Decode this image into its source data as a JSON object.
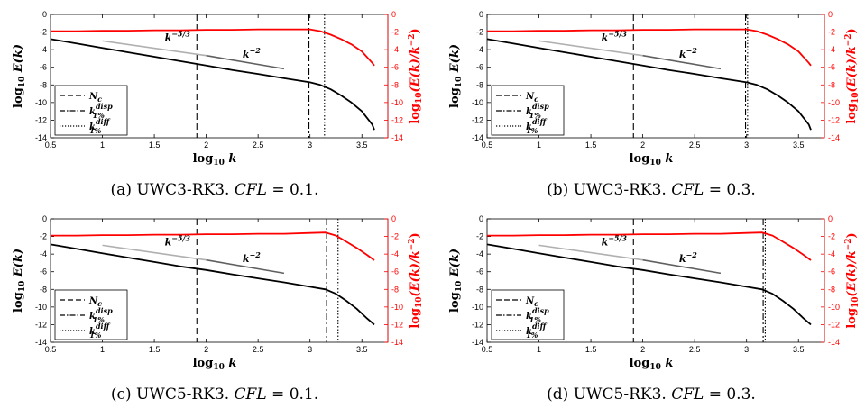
{
  "figure": {
    "axis_text": {
      "xlabel_main": "log",
      "xlabel_sub": "10",
      "xlabel_var": "k",
      "ylabel_left_main": "log",
      "ylabel_left_sub": "10",
      "ylabel_left_rest": "E(k)",
      "ylabel_right_main": "log",
      "ylabel_right_sub": "10",
      "ylabel_right_rest": "(E(k)/k",
      "ylabel_right_exp": "−2",
      "ylabel_right_close": ")"
    },
    "legend": {
      "entries": [
        {
          "style": "dashed",
          "base": "N",
          "sub": "c",
          "sup": ""
        },
        {
          "style": "dashdot",
          "base": "k",
          "sub": "1%",
          "sup": "disp"
        },
        {
          "style": "dotted",
          "base": "k",
          "sub": "1%",
          "sup": "diff"
        }
      ]
    },
    "annotations": {
      "slope53_base": "k",
      "slope53_exp": "−5/3",
      "slope2_base": "k",
      "slope2_exp": "−2"
    },
    "colors": {
      "spectrum": "#000000",
      "compensated": "#ff0000",
      "slope53": "#b0b0b0",
      "slope2": "#606060",
      "grid": "#000000"
    }
  },
  "chart_data": [
    {
      "type": "line",
      "caption": {
        "label": "(a) UWC3-RK3.",
        "cfl": "CFL",
        "eq": "= 0.1."
      },
      "xlim": [
        0.5,
        3.75
      ],
      "ylim_left": [
        -14,
        0
      ],
      "ylim_right": [
        -14,
        0
      ],
      "xticks": [
        "0.5",
        "1",
        "1.5",
        "2",
        "2.5",
        "3",
        "3.5"
      ],
      "yticks": [
        "0",
        "-2",
        "-4",
        "-6",
        "-8",
        "-10",
        "-12",
        "-14"
      ],
      "vlines": {
        "Nc": 1.91,
        "k_disp": 2.99,
        "k_diff": 3.14
      },
      "series": [
        {
          "axis": "left",
          "x": [
            0.5,
            0.75,
            1.0,
            1.25,
            1.5,
            1.75,
            2.0,
            2.25,
            2.5,
            2.75,
            3.0,
            3.1,
            3.2,
            3.3,
            3.4,
            3.5,
            3.6,
            3.62
          ],
          "y": [
            -2.8,
            -3.3,
            -3.8,
            -4.3,
            -4.8,
            -5.3,
            -5.8,
            -6.3,
            -6.75,
            -7.25,
            -7.7,
            -8.0,
            -8.5,
            -9.2,
            -10.0,
            -11.0,
            -12.5,
            -13.1
          ]
        },
        {
          "axis": "right",
          "x": [
            0.5,
            0.75,
            1.0,
            1.25,
            1.5,
            1.75,
            2.0,
            2.25,
            2.5,
            2.75,
            3.0,
            3.1,
            3.2,
            3.3,
            3.4,
            3.5,
            3.6,
            3.62
          ],
          "y": [
            -1.9,
            -1.9,
            -1.85,
            -1.85,
            -1.8,
            -1.8,
            -1.75,
            -1.75,
            -1.7,
            -1.7,
            -1.7,
            -1.9,
            -2.3,
            -2.8,
            -3.4,
            -4.2,
            -5.5,
            -5.8
          ]
        }
      ],
      "ref_lines": [
        {
          "label": "k^-5/3",
          "x": [
            1.0,
            2.0
          ],
          "y": [
            -3.0,
            -4.67
          ]
        },
        {
          "label": "k^-2",
          "x": [
            2.0,
            2.75
          ],
          "y": [
            -4.67,
            -6.17
          ]
        }
      ]
    },
    {
      "type": "line",
      "caption": {
        "label": "(b) UWC3-RK3.",
        "cfl": "CFL",
        "eq": "= 0.3."
      },
      "xlim": [
        0.5,
        3.75
      ],
      "ylim_left": [
        -14,
        0
      ],
      "ylim_right": [
        -14,
        0
      ],
      "xticks": [
        "0.5",
        "1",
        "1.5",
        "2",
        "2.5",
        "3",
        "3.5"
      ],
      "yticks": [
        "0",
        "-2",
        "-4",
        "-6",
        "-8",
        "-10",
        "-12",
        "-14"
      ],
      "vlines": {
        "Nc": 1.91,
        "k_disp": 2.99,
        "k_diff": 3.01
      },
      "series": [
        {
          "axis": "left",
          "x": [
            0.5,
            0.75,
            1.0,
            1.25,
            1.5,
            1.75,
            2.0,
            2.25,
            2.5,
            2.75,
            3.0,
            3.1,
            3.2,
            3.3,
            3.4,
            3.5,
            3.6,
            3.62
          ],
          "y": [
            -2.8,
            -3.3,
            -3.8,
            -4.3,
            -4.8,
            -5.3,
            -5.8,
            -6.3,
            -6.75,
            -7.25,
            -7.7,
            -8.0,
            -8.5,
            -9.2,
            -10.0,
            -11.0,
            -12.5,
            -13.1
          ]
        },
        {
          "axis": "right",
          "x": [
            0.5,
            0.75,
            1.0,
            1.25,
            1.5,
            1.75,
            2.0,
            2.25,
            2.5,
            2.75,
            3.0,
            3.1,
            3.2,
            3.3,
            3.4,
            3.5,
            3.6,
            3.62
          ],
          "y": [
            -1.9,
            -1.9,
            -1.85,
            -1.85,
            -1.8,
            -1.8,
            -1.75,
            -1.75,
            -1.7,
            -1.7,
            -1.7,
            -1.9,
            -2.3,
            -2.8,
            -3.4,
            -4.2,
            -5.5,
            -5.8
          ]
        }
      ],
      "ref_lines": [
        {
          "label": "k^-5/3",
          "x": [
            1.0,
            2.0
          ],
          "y": [
            -3.0,
            -4.67
          ]
        },
        {
          "label": "k^-2",
          "x": [
            2.0,
            2.75
          ],
          "y": [
            -4.67,
            -6.17
          ]
        }
      ]
    },
    {
      "type": "line",
      "caption": {
        "label": "(c) UWC5-RK3.",
        "cfl": "CFL",
        "eq": "= 0.1."
      },
      "xlim": [
        0.5,
        3.75
      ],
      "ylim_left": [
        -14,
        0
      ],
      "ylim_right": [
        -14,
        0
      ],
      "xticks": [
        "0.5",
        "1",
        "1.5",
        "2",
        "2.5",
        "3",
        "3.5"
      ],
      "yticks": [
        "0",
        "-2",
        "-4",
        "-6",
        "-8",
        "-10",
        "-12",
        "-14"
      ],
      "vlines": {
        "Nc": 1.91,
        "k_disp": 3.16,
        "k_diff": 3.27
      },
      "series": [
        {
          "axis": "left",
          "x": [
            0.5,
            0.75,
            1.0,
            1.25,
            1.5,
            1.75,
            2.0,
            2.25,
            2.5,
            2.75,
            3.0,
            3.15,
            3.25,
            3.35,
            3.45,
            3.55,
            3.62
          ],
          "y": [
            -2.9,
            -3.4,
            -3.9,
            -4.4,
            -4.9,
            -5.4,
            -5.8,
            -6.3,
            -6.75,
            -7.2,
            -7.7,
            -8.0,
            -8.5,
            -9.3,
            -10.2,
            -11.3,
            -12.0
          ]
        },
        {
          "axis": "right",
          "x": [
            0.5,
            0.75,
            1.0,
            1.25,
            1.5,
            1.75,
            2.0,
            2.25,
            2.5,
            2.75,
            3.0,
            3.15,
            3.25,
            3.35,
            3.45,
            3.55,
            3.62
          ],
          "y": [
            -1.9,
            -1.9,
            -1.85,
            -1.85,
            -1.8,
            -1.8,
            -1.75,
            -1.75,
            -1.7,
            -1.7,
            -1.6,
            -1.55,
            -1.9,
            -2.6,
            -3.3,
            -4.1,
            -4.7
          ]
        }
      ],
      "ref_lines": [
        {
          "label": "k^-5/3",
          "x": [
            1.0,
            2.0
          ],
          "y": [
            -3.0,
            -4.67
          ]
        },
        {
          "label": "k^-2",
          "x": [
            2.0,
            2.75
          ],
          "y": [
            -4.67,
            -6.17
          ]
        }
      ]
    },
    {
      "type": "line",
      "caption": {
        "label": "(d) UWC5-RK3.",
        "cfl": "CFL",
        "eq": "= 0.3."
      },
      "xlim": [
        0.5,
        3.75
      ],
      "ylim_left": [
        -14,
        0
      ],
      "ylim_right": [
        -14,
        0
      ],
      "xticks": [
        "0.5",
        "1",
        "1.5",
        "2",
        "2.5",
        "3",
        "3.5"
      ],
      "yticks": [
        "0",
        "-2",
        "-4",
        "-6",
        "-8",
        "-10",
        "-12",
        "-14"
      ],
      "vlines": {
        "Nc": 1.91,
        "k_disp": 3.16,
        "k_diff": 3.18
      },
      "series": [
        {
          "axis": "left",
          "x": [
            0.5,
            0.75,
            1.0,
            1.25,
            1.5,
            1.75,
            2.0,
            2.25,
            2.5,
            2.75,
            3.0,
            3.15,
            3.25,
            3.35,
            3.45,
            3.55,
            3.62
          ],
          "y": [
            -2.9,
            -3.4,
            -3.9,
            -4.4,
            -4.9,
            -5.4,
            -5.8,
            -6.3,
            -6.75,
            -7.2,
            -7.7,
            -8.0,
            -8.5,
            -9.3,
            -10.2,
            -11.3,
            -12.0
          ]
        },
        {
          "axis": "right",
          "x": [
            0.5,
            0.75,
            1.0,
            1.25,
            1.5,
            1.75,
            2.0,
            2.25,
            2.5,
            2.75,
            3.0,
            3.15,
            3.25,
            3.35,
            3.45,
            3.55,
            3.62
          ],
          "y": [
            -1.9,
            -1.9,
            -1.85,
            -1.85,
            -1.8,
            -1.8,
            -1.75,
            -1.75,
            -1.7,
            -1.7,
            -1.6,
            -1.55,
            -1.9,
            -2.6,
            -3.3,
            -4.1,
            -4.7
          ]
        }
      ],
      "ref_lines": [
        {
          "label": "k^-5/3",
          "x": [
            1.0,
            2.0
          ],
          "y": [
            -3.0,
            -4.67
          ]
        },
        {
          "label": "k^-2",
          "x": [
            2.0,
            2.75
          ],
          "y": [
            -4.67,
            -6.17
          ]
        }
      ]
    }
  ]
}
